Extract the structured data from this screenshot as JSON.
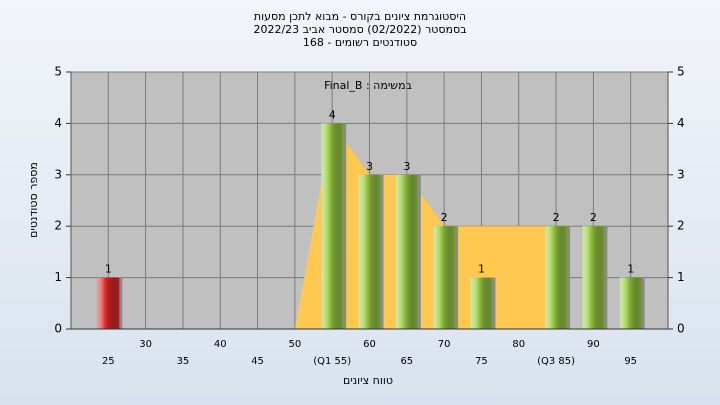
{
  "chart_data": {
    "type": "bar",
    "title": "היסטוגרמת ציונים בקורס - מבוא לתכן מסעות",
    "subtitle": "בסמסטר  (02/2022)  סמסטר אביב 2022/23",
    "subtitle2": "סטודנטים רשומים - 168",
    "annotation": "במשימה : Final_B",
    "x_label": "טווח ציונים",
    "y_label": "מספר סטודנטים",
    "categories": [
      "25",
      "30",
      "35",
      "40",
      "45",
      "50",
      "(Q1 55)",
      "60",
      "65",
      "70",
      "75",
      "80",
      "(Q3 85)",
      "90",
      "95"
    ],
    "values": [
      1,
      0,
      0,
      0,
      0,
      0,
      4,
      3,
      3,
      2,
      1,
      0,
      2,
      2,
      1
    ],
    "colors": [
      "#e02a2a",
      "#9acd45",
      "#9acd45",
      "#9acd45",
      "#9acd45",
      "#9acd45",
      "#9acd45",
      "#9acd45",
      "#9acd45",
      "#9acd45",
      "#9acd45",
      "#9acd45",
      "#9acd45",
      "#9acd45",
      "#9acd45"
    ],
    "area_values": [
      null,
      null,
      null,
      null,
      null,
      0,
      4,
      3,
      3,
      2,
      2,
      2,
      2,
      null,
      null
    ],
    "area_color": "#ffc850",
    "ylim": [
      0,
      5
    ],
    "yticks": [
      0,
      1,
      2,
      3,
      4,
      5
    ],
    "y2lim": [
      0,
      5
    ],
    "y2ticks": [
      0,
      1,
      2,
      3,
      4,
      5
    ],
    "grid": true
  }
}
